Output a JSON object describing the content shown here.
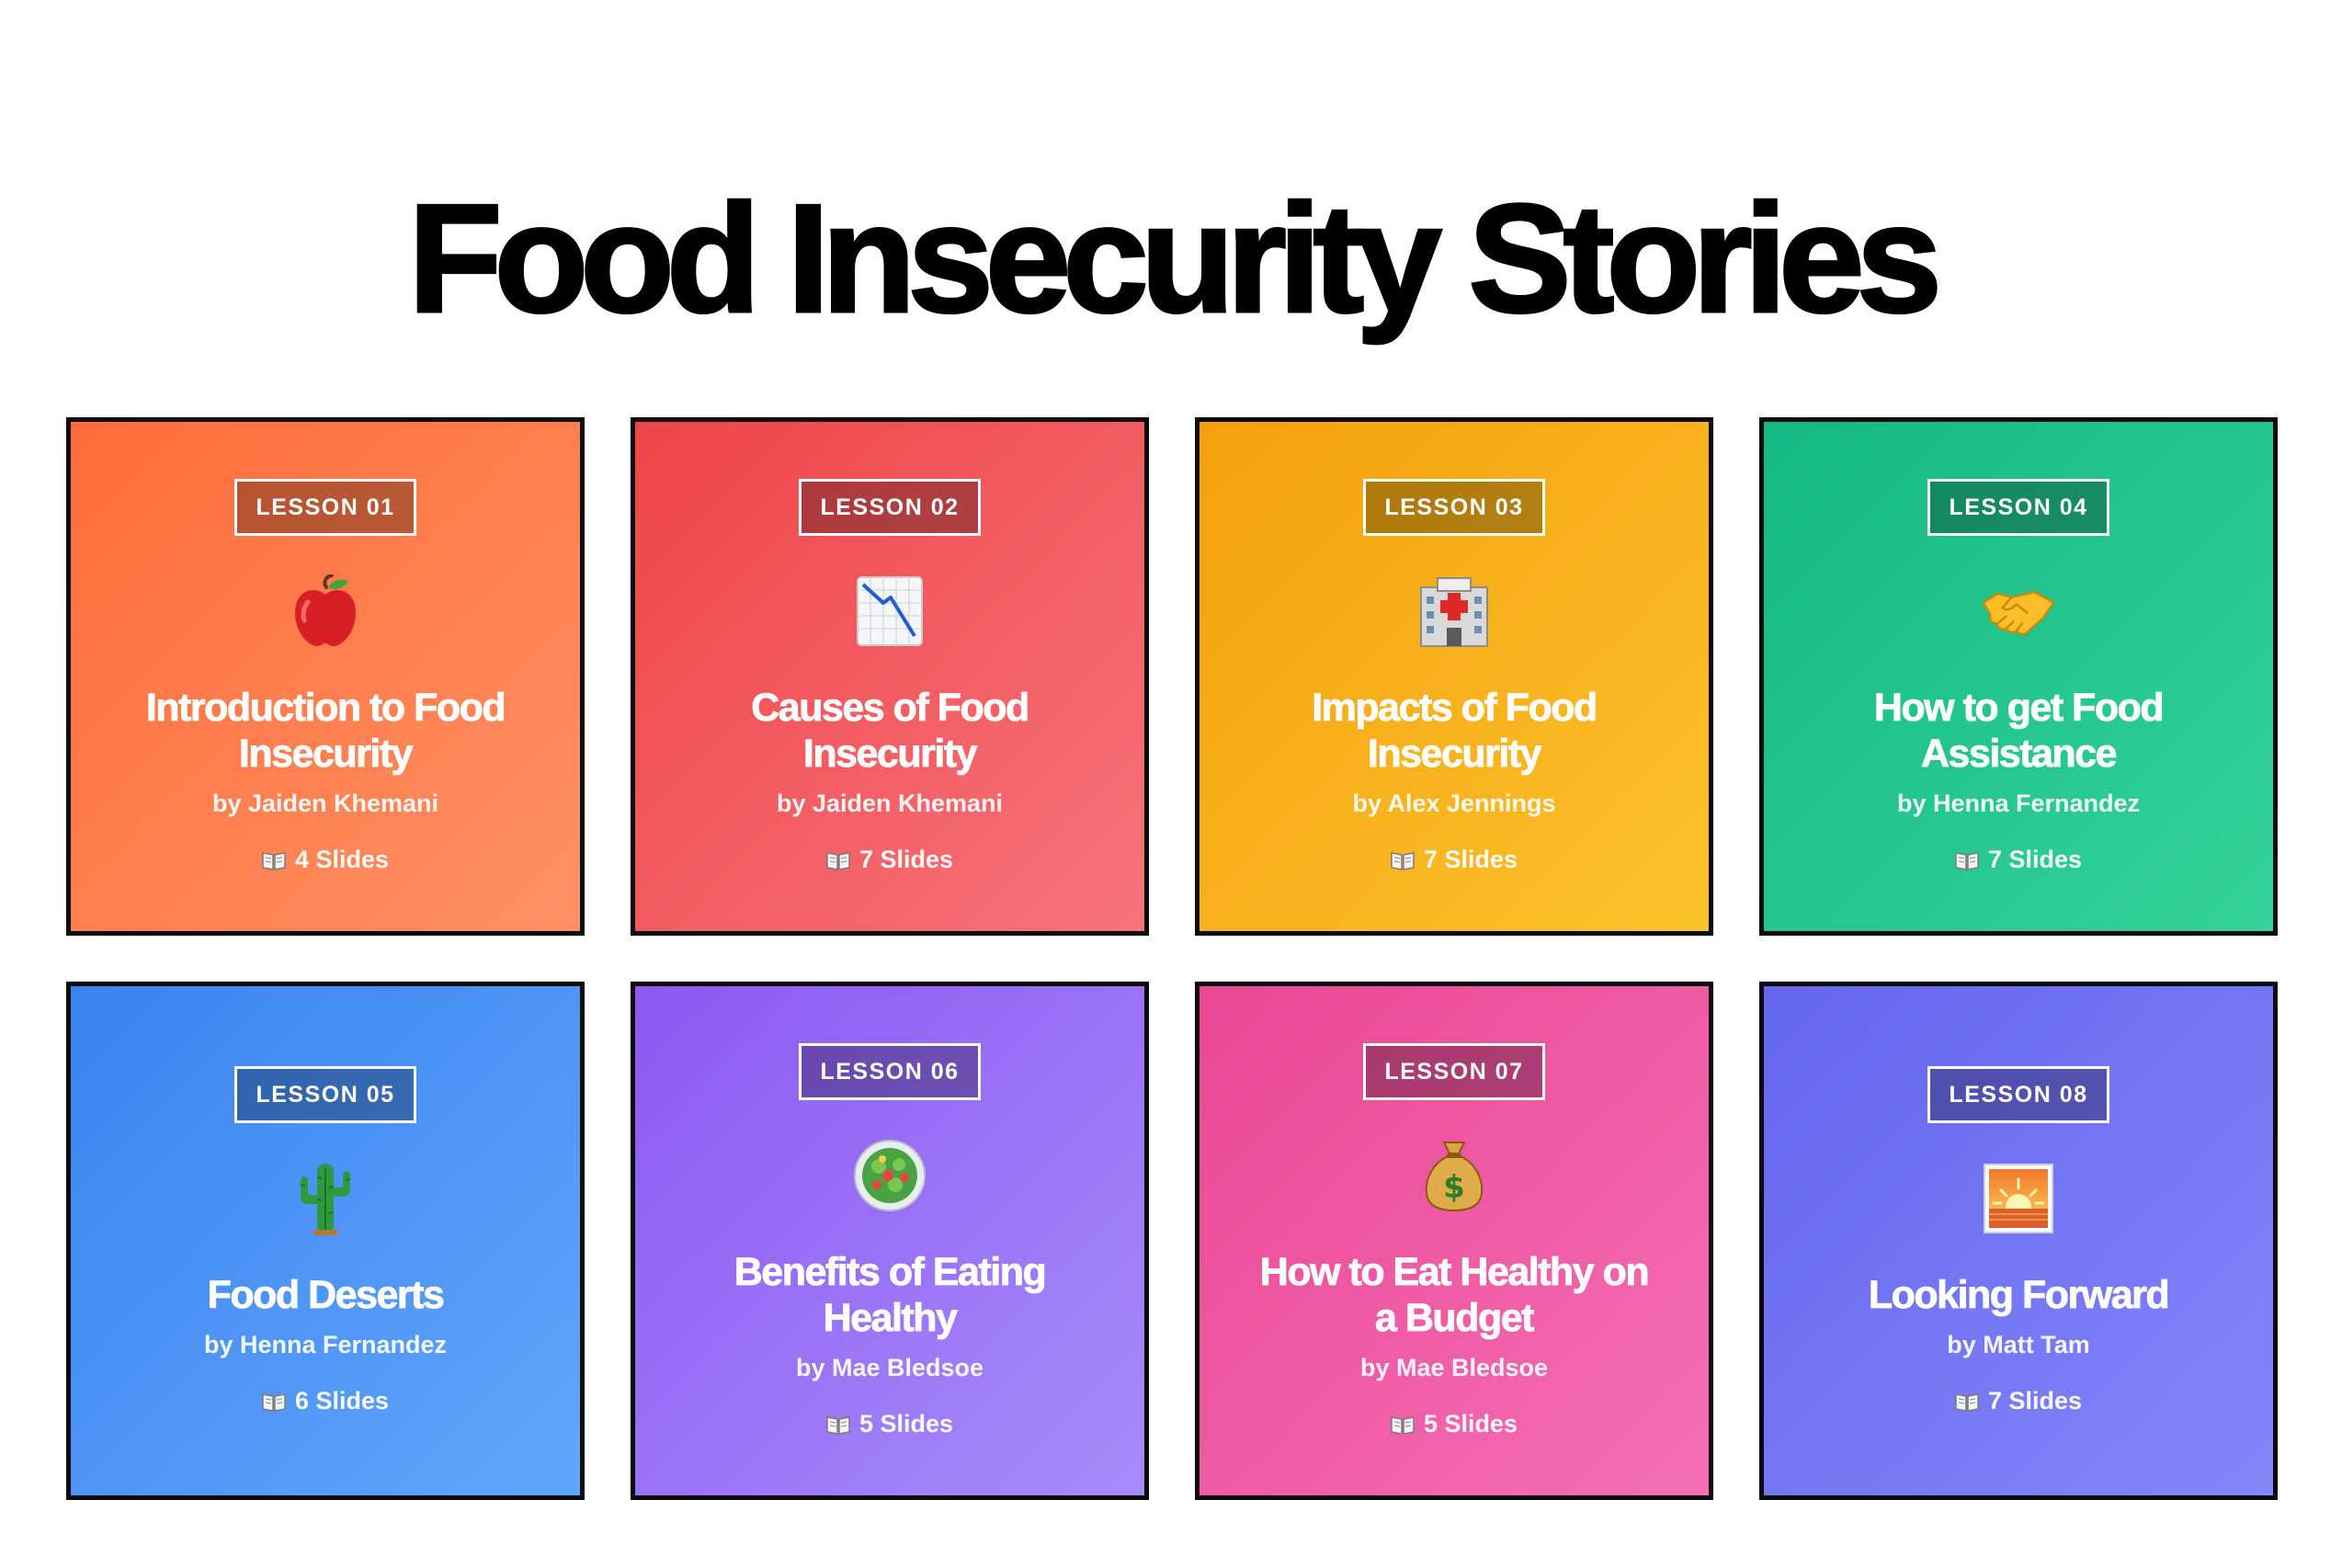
{
  "page": {
    "title": "Food Insecurity Stories"
  },
  "lessons": [
    {
      "badge": "LESSON 01",
      "icon": "apple-icon",
      "title": "Introduction to Food Insecurity",
      "author": "by Jaiden Khemani",
      "slides": "4 Slides",
      "colors": [
        "#ff6b3a",
        "#ff9164"
      ]
    },
    {
      "badge": "LESSON 02",
      "icon": "chart-decreasing-icon",
      "title": "Causes of Food Insecurity",
      "author": "by Jaiden Khemani",
      "slides": "7 Slides",
      "colors": [
        "#ee4548",
        "#f7737a"
      ]
    },
    {
      "badge": "LESSON 03",
      "icon": "hospital-icon",
      "title": "Impacts of Food Insecurity",
      "author": "by Alex Jennings",
      "slides": "7 Slides",
      "colors": [
        "#f4a00c",
        "#fbc22c"
      ]
    },
    {
      "badge": "LESSON 04",
      "icon": "handshake-icon",
      "title": "How to get Food Assistance",
      "author": "by Henna Fernandez",
      "slides": "7 Slides",
      "colors": [
        "#14b883",
        "#33d399"
      ]
    },
    {
      "badge": "LESSON 05",
      "icon": "cactus-icon",
      "title": "Food Deserts",
      "author": "by Henna Fernandez",
      "slides": "6 Slides",
      "colors": [
        "#3b83f0",
        "#60a6fb"
      ]
    },
    {
      "badge": "LESSON 06",
      "icon": "salad-icon",
      "title": "Benefits of Eating Healthy",
      "author": "by Mae Bledsoe",
      "slides": "5 Slides",
      "colors": [
        "#8c59f2",
        "#a78bfa"
      ]
    },
    {
      "badge": "LESSON 07",
      "icon": "money-bag-icon",
      "title": "How to Eat Healthy on a Budget",
      "author": "by Mae Bledsoe",
      "slides": "5 Slides",
      "colors": [
        "#ea4694",
        "#f46fb4"
      ]
    },
    {
      "badge": "LESSON 08",
      "icon": "sunrise-icon",
      "title": "Looking Forward",
      "author": "by Matt Tam",
      "slides": "7 Slides",
      "colors": [
        "#6566ef",
        "#8386f8"
      ]
    }
  ]
}
